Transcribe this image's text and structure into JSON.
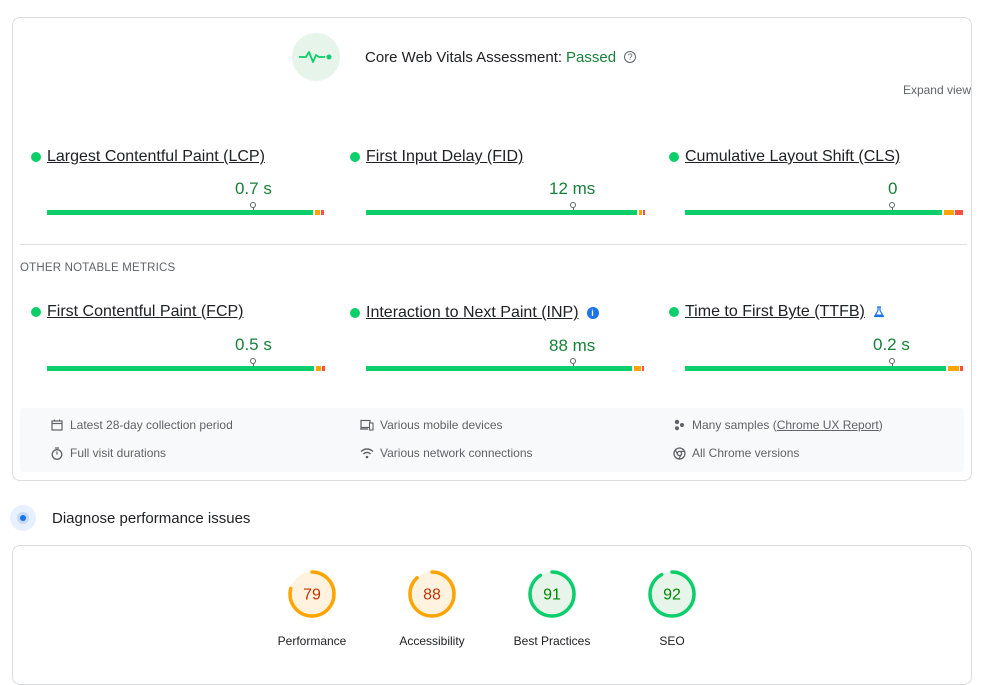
{
  "header": {
    "title": "Core Web Vitals Assessment:",
    "status": "Passed",
    "help_glyph": "?",
    "expand_label": "Expand view"
  },
  "core_metrics": [
    {
      "name": "Largest Contentful Paint (LCP)",
      "value": "0.7 s"
    },
    {
      "name": "First Input Delay (FID)",
      "value": "12 ms"
    },
    {
      "name": "Cumulative Layout Shift (CLS)",
      "value": "0"
    }
  ],
  "other_label": "OTHER NOTABLE METRICS",
  "other_metrics": [
    {
      "name": "First Contentful Paint (FCP)",
      "value": "0.5 s"
    },
    {
      "name": "Interaction to Next Paint (INP)",
      "value": "88 ms",
      "badge": "i"
    },
    {
      "name": "Time to First Byte (TTFB)",
      "value": "0.2 s"
    }
  ],
  "info": {
    "period": "Latest 28-day collection period",
    "durations": "Full visit durations",
    "devices": "Various mobile devices",
    "network": "Various network connections",
    "samples_prefix": "Many samples (",
    "samples_link": "Chrome UX Report",
    "samples_suffix": ")",
    "chrome": "All Chrome versions"
  },
  "diagnose": {
    "title": "Diagnose performance issues"
  },
  "scores": [
    {
      "label": "Performance",
      "value": "79",
      "score": 79,
      "color": "#ffa400",
      "text_color": "#c33300",
      "bg": "#fff3e0"
    },
    {
      "label": "Accessibility",
      "value": "88",
      "score": 88,
      "color": "#ffa400",
      "text_color": "#c33300",
      "bg": "#fff3e0"
    },
    {
      "label": "Best Practices",
      "value": "91",
      "score": 91,
      "color": "#0cce6b",
      "text_color": "#008800",
      "bg": "#e6f4ea"
    },
    {
      "label": "SEO",
      "value": "92",
      "score": 92,
      "color": "#0cce6b",
      "text_color": "#008800",
      "bg": "#e6f4ea"
    }
  ],
  "colors": {
    "good": "#0cce6b",
    "needs_improvement": "#ffa400",
    "poor": "#ff4e42",
    "passed_text": "#188038"
  }
}
